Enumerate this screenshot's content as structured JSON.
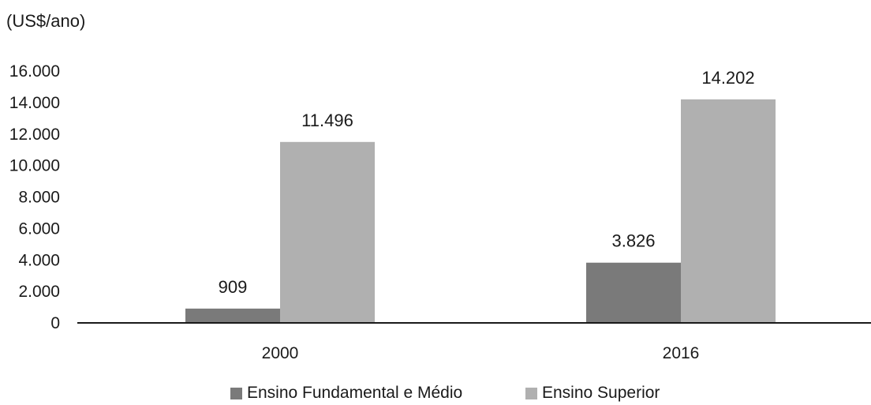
{
  "chart_data": {
    "type": "bar",
    "unit_label": "(US$/ano)",
    "categories": [
      "2000",
      "2016"
    ],
    "series": [
      {
        "name": "Ensino Fundamental e Médio",
        "values": [
          909,
          3826
        ],
        "labels": [
          "909",
          "3.826"
        ],
        "color": "#7a7a7a"
      },
      {
        "name": "Ensino Superior",
        "values": [
          11496,
          14202
        ],
        "labels": [
          "11.496",
          "14.202"
        ],
        "color": "#b0b0b0"
      }
    ],
    "yticks": [
      {
        "value": 0,
        "label": "0"
      },
      {
        "value": 2000,
        "label": "2.000"
      },
      {
        "value": 4000,
        "label": "4.000"
      },
      {
        "value": 6000,
        "label": "6.000"
      },
      {
        "value": 8000,
        "label": "8.000"
      },
      {
        "value": 10000,
        "label": "10.000"
      },
      {
        "value": 12000,
        "label": "12.000"
      },
      {
        "value": 14000,
        "label": "14.000"
      },
      {
        "value": 16000,
        "label": "16.000"
      }
    ],
    "ylim": [
      0,
      16000
    ],
    "grid": false,
    "legend_position": "bottom"
  }
}
